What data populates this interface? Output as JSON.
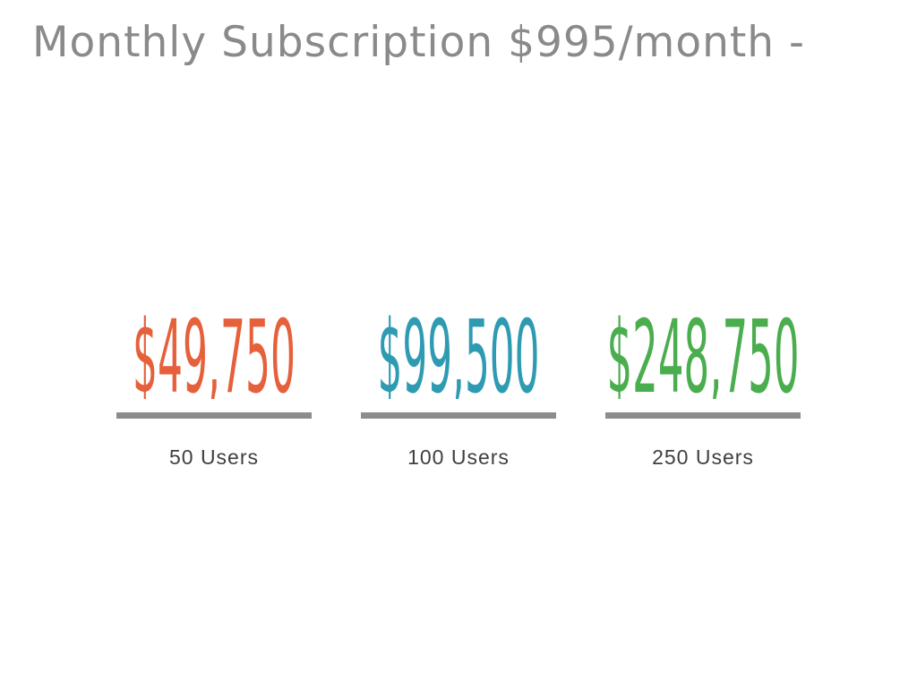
{
  "slide": {
    "title": "Monthly Subscription $995/month -",
    "background_color": "#FFFFFF",
    "title_color": "#8A8A8A",
    "divider_color": "#8C8C8C",
    "label_color": "#3F3F3F"
  },
  "tiers": [
    {
      "price": "$49,750",
      "label": "50 Users",
      "color": "#E5603B"
    },
    {
      "price": "$99,500",
      "label": "100 Users",
      "color": "#2E9BB3"
    },
    {
      "price": "$248,750",
      "label": "250 Users",
      "color": "#4AAD4E"
    }
  ],
  "chart_data": {
    "type": "table",
    "title": "Monthly Subscription $995/month -",
    "categories": [
      "50 Users",
      "100 Users",
      "250 Users"
    ],
    "values": [
      49750,
      99500,
      248750
    ],
    "value_labels": [
      "$49,750",
      "$99,500",
      "$248,750"
    ],
    "series_colors": [
      "#E5603B",
      "#2E9BB3",
      "#4AAD4E"
    ]
  }
}
